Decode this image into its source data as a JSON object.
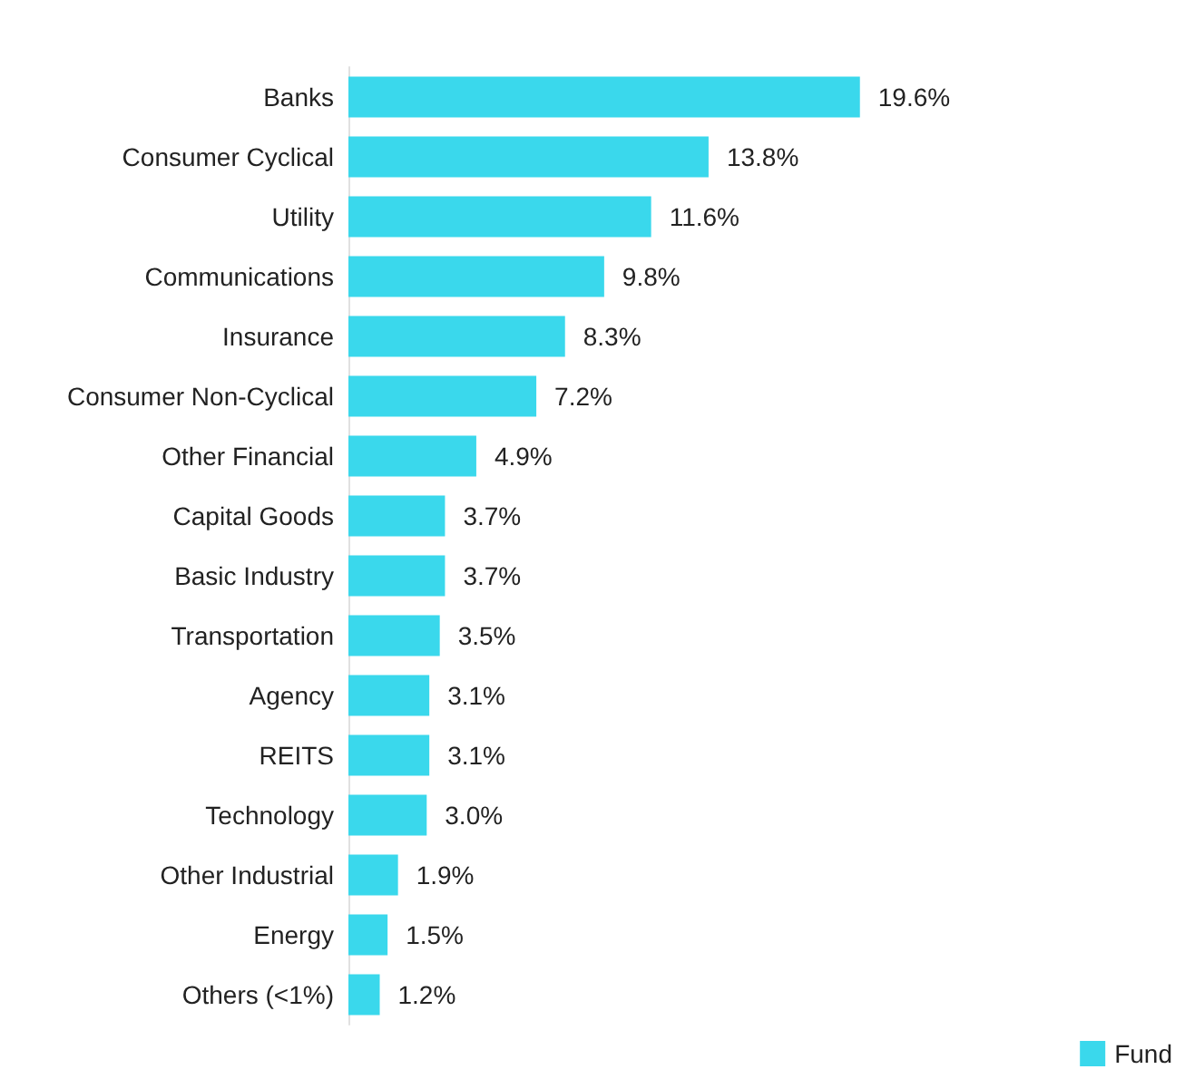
{
  "chart_data": {
    "type": "bar",
    "orientation": "horizontal",
    "categories": [
      "Banks",
      "Consumer Cyclical",
      "Utility",
      "Communications",
      "Insurance",
      "Consumer Non-Cyclical",
      "Other Financial",
      "Capital Goods",
      "Basic Industry",
      "Transportation",
      "Agency",
      "REITS",
      "Technology",
      "Other Industrial",
      "Energy",
      "Others (<1%)"
    ],
    "series": [
      {
        "name": "Fund",
        "color": "#3ad8ec",
        "values": [
          19.6,
          13.8,
          11.6,
          9.8,
          8.3,
          7.2,
          4.9,
          3.7,
          3.7,
          3.5,
          3.1,
          3.1,
          3.0,
          1.9,
          1.5,
          1.2
        ],
        "value_labels": [
          "19.6%",
          "13.8%",
          "11.6%",
          "9.8%",
          "8.3%",
          "7.2%",
          "4.9%",
          "3.7%",
          "3.7%",
          "3.5%",
          "3.1%",
          "3.1%",
          "3.0%",
          "1.9%",
          "1.5%",
          "1.2%"
        ]
      }
    ],
    "legend": "bottom right"
  }
}
